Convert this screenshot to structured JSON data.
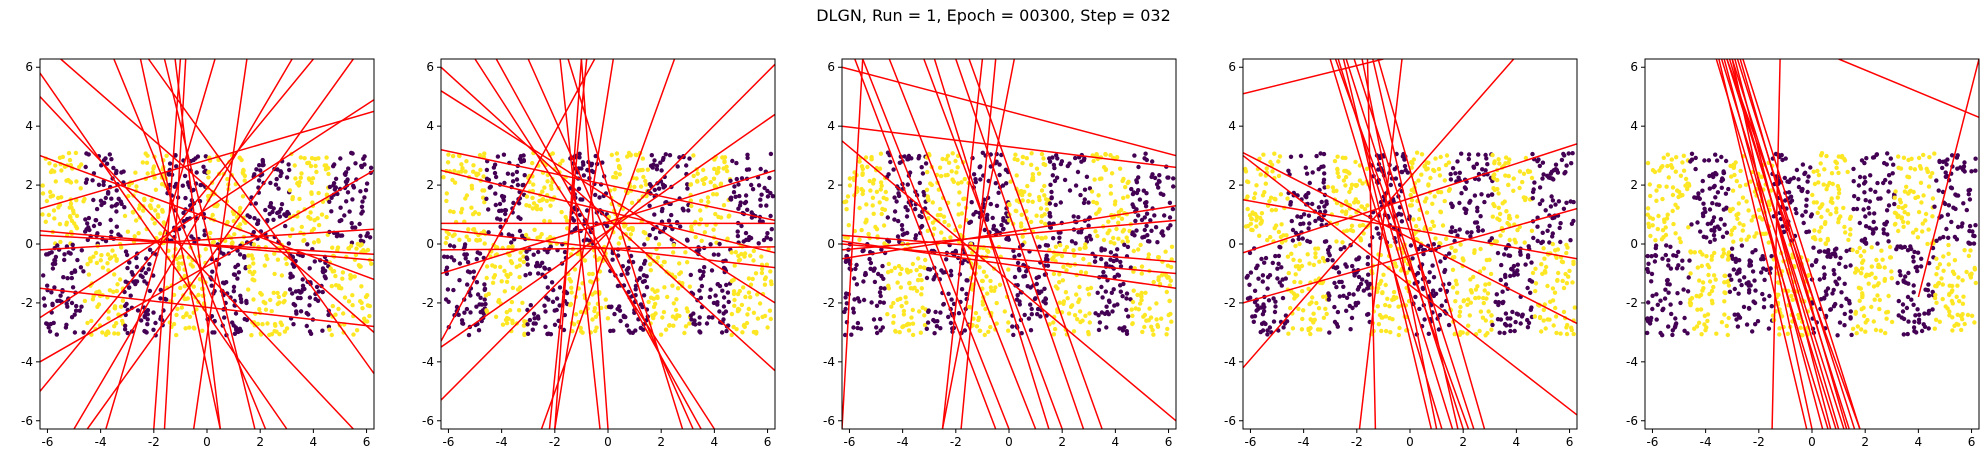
{
  "figure": {
    "title": "DLGN, Run = 1, Epoch = 00300, Step = 032"
  },
  "chart_data": [
    {
      "type": "scatter",
      "title": "",
      "xlabel": "",
      "ylabel": "",
      "xlim": [
        -6.28,
        6.28
      ],
      "ylim": [
        -6.28,
        6.28
      ],
      "xticks": [
        -6,
        -4,
        -2,
        0,
        2,
        4,
        6
      ],
      "yticks": [
        -6,
        -4,
        -2,
        0,
        2,
        4,
        6
      ],
      "grid": false,
      "points": {
        "x_range": [
          -6.2,
          6.2
        ],
        "y_range": [
          -3.1,
          3.1
        ],
        "column_edges": [
          -6.2,
          -4.6,
          -3.1,
          -1.5,
          0,
          1.5,
          3.1,
          4.6,
          6.2
        ],
        "row_split": 0,
        "colors": {
          "class0": "#440154",
          "class1": "#fde725"
        },
        "top_row_starts_with": "class1"
      },
      "hyperplanes": [
        [
          [
            -6.28,
            0.45
          ],
          [
            6.28,
            -0.55
          ]
        ],
        [
          [
            -6.28,
            0.3
          ],
          [
            6.28,
            -0.35
          ]
        ],
        [
          [
            -6.28,
            -0.2
          ],
          [
            6.28,
            0.5
          ]
        ],
        [
          [
            -6.28,
            5.8
          ],
          [
            3.0,
            -6.28
          ]
        ],
        [
          [
            -6.28,
            -5.0
          ],
          [
            4.0,
            6.28
          ]
        ],
        [
          [
            -3.5,
            6.28
          ],
          [
            2.2,
            -6.28
          ]
        ],
        [
          [
            -2.5,
            6.28
          ],
          [
            0.5,
            -6.28
          ]
        ],
        [
          [
            -1.0,
            6.28
          ],
          [
            -2.0,
            -6.28
          ]
        ],
        [
          [
            0.3,
            6.28
          ],
          [
            -3.8,
            -6.28
          ]
        ],
        [
          [
            -6.28,
            1.2
          ],
          [
            6.28,
            4.5
          ]
        ],
        [
          [
            -6.28,
            -4.0
          ],
          [
            6.28,
            2.5
          ]
        ],
        [
          [
            -6.28,
            -1.5
          ],
          [
            6.28,
            -2.8
          ]
        ],
        [
          [
            -4.5,
            -6.28
          ],
          [
            5.5,
            6.28
          ]
        ],
        [
          [
            -5.5,
            6.28
          ],
          [
            6.28,
            -3.0
          ]
        ],
        [
          [
            -2.2,
            6.28
          ],
          [
            6.28,
            -4.4
          ]
        ],
        [
          [
            1.5,
            6.28
          ],
          [
            -0.5,
            -6.28
          ]
        ],
        [
          [
            3.2,
            6.28
          ],
          [
            -5.0,
            -6.28
          ]
        ],
        [
          [
            -6.28,
            3.0
          ],
          [
            6.28,
            -1.2
          ]
        ],
        [
          [
            -1.6,
            6.28
          ],
          [
            1.8,
            -6.28
          ]
        ],
        [
          [
            0.5,
            -6.28
          ],
          [
            -1.2,
            6.28
          ]
        ],
        [
          [
            -6.28,
            -2.5
          ],
          [
            6.28,
            4.9
          ]
        ],
        [
          [
            -6.28,
            5.0
          ],
          [
            5.5,
            -6.28
          ]
        ],
        [
          [
            -0.8,
            6.28
          ],
          [
            -1.6,
            -6.28
          ]
        ]
      ]
    },
    {
      "type": "scatter",
      "title": "",
      "xlabel": "",
      "ylabel": "",
      "xlim": [
        -6.28,
        6.28
      ],
      "ylim": [
        -6.28,
        6.28
      ],
      "xticks": [
        -6,
        -4,
        -2,
        0,
        2,
        4,
        6
      ],
      "yticks": [
        -6,
        -4,
        -2,
        0,
        2,
        4,
        6
      ],
      "grid": false,
      "points": {
        "x_range": [
          -6.2,
          6.2
        ],
        "y_range": [
          -3.1,
          3.1
        ],
        "column_edges": [
          -6.2,
          -4.6,
          -3.1,
          -1.5,
          0,
          1.5,
          3.1,
          4.6,
          6.2
        ],
        "row_split": 0,
        "colors": {
          "class0": "#440154",
          "class1": "#fde725"
        },
        "top_row_starts_with": "class1"
      },
      "hyperplanes": [
        [
          [
            -6.28,
            0.7
          ],
          [
            6.28,
            0.7
          ]
        ],
        [
          [
            -6.28,
            -0.2
          ],
          [
            6.28,
            -0.1
          ]
        ],
        [
          [
            -6.28,
            0.5
          ],
          [
            6.28,
            -0.8
          ]
        ],
        [
          [
            -6.28,
            -5.3
          ],
          [
            6.28,
            6.1
          ]
        ],
        [
          [
            -6.28,
            6.0
          ],
          [
            6.28,
            -4.3
          ]
        ],
        [
          [
            -6.28,
            2.5
          ],
          [
            6.28,
            -0.3
          ]
        ],
        [
          [
            -6.28,
            -3.3
          ],
          [
            -0.5,
            6.28
          ]
        ],
        [
          [
            -2.2,
            -6.28
          ],
          [
            -0.8,
            6.28
          ]
        ],
        [
          [
            -2.0,
            -6.28
          ],
          [
            -1.0,
            6.28
          ]
        ],
        [
          [
            -0.3,
            -6.28
          ],
          [
            -1.8,
            6.28
          ]
        ],
        [
          [
            -4.2,
            6.28
          ],
          [
            3.5,
            -6.28
          ]
        ],
        [
          [
            -3.0,
            6.28
          ],
          [
            3.2,
            -6.28
          ]
        ],
        [
          [
            -1.5,
            6.28
          ],
          [
            2.8,
            -6.28
          ]
        ],
        [
          [
            -6.28,
            -1.0
          ],
          [
            6.28,
            2.5
          ]
        ],
        [
          [
            -6.28,
            3.2
          ],
          [
            6.28,
            0.8
          ]
        ],
        [
          [
            0.2,
            6.28
          ],
          [
            -2.0,
            -6.28
          ]
        ],
        [
          [
            -6.28,
            5.2
          ],
          [
            6.28,
            -2.0
          ]
        ],
        [
          [
            -2.5,
            -6.28
          ],
          [
            2.5,
            6.28
          ]
        ],
        [
          [
            -1.0,
            6.28
          ],
          [
            0.0,
            -6.28
          ]
        ],
        [
          [
            -5.0,
            6.28
          ],
          [
            4.0,
            -6.28
          ]
        ],
        [
          [
            -6.28,
            -3.5
          ],
          [
            6.28,
            4.4
          ]
        ]
      ]
    },
    {
      "type": "scatter",
      "title": "",
      "xlabel": "",
      "ylabel": "",
      "xlim": [
        -6.28,
        6.28
      ],
      "ylim": [
        -6.28,
        6.28
      ],
      "xticks": [
        -6,
        -4,
        -2,
        0,
        2,
        4,
        6
      ],
      "yticks": [
        -6,
        -4,
        -2,
        0,
        2,
        4,
        6
      ],
      "grid": false,
      "points": {
        "x_range": [
          -6.2,
          6.2
        ],
        "y_range": [
          -3.1,
          3.1
        ],
        "column_edges": [
          -6.2,
          -4.6,
          -3.1,
          -1.5,
          0,
          1.5,
          3.1,
          4.6,
          6.2
        ],
        "row_split": 0,
        "colors": {
          "class0": "#440154",
          "class1": "#fde725"
        },
        "top_row_starts_with": "class1"
      },
      "hyperplanes": [
        [
          [
            -6.28,
            4.0
          ],
          [
            6.28,
            2.6
          ]
        ],
        [
          [
            -6.28,
            3.5
          ],
          [
            6.28,
            -6.0
          ]
        ],
        [
          [
            -6.28,
            0.3
          ],
          [
            6.28,
            -0.6
          ]
        ],
        [
          [
            -6.28,
            -0.2
          ],
          [
            6.28,
            0.8
          ]
        ],
        [
          [
            -6.28,
            0.0
          ],
          [
            6.28,
            -1.0
          ]
        ],
        [
          [
            -6.28,
            0.1
          ],
          [
            6.28,
            -1.5
          ]
        ],
        [
          [
            -6.28,
            -0.5
          ],
          [
            6.28,
            1.3
          ]
        ],
        [
          [
            -5.5,
            6.28
          ],
          [
            0.0,
            -6.28
          ]
        ],
        [
          [
            -4.5,
            6.28
          ],
          [
            1.0,
            -6.28
          ]
        ],
        [
          [
            -3.2,
            6.28
          ],
          [
            2.0,
            -6.28
          ]
        ],
        [
          [
            -2.0,
            6.28
          ],
          [
            2.8,
            -6.28
          ]
        ],
        [
          [
            -1.5,
            6.28
          ],
          [
            3.5,
            -6.28
          ]
        ],
        [
          [
            -1.0,
            6.28
          ],
          [
            -2.5,
            -6.28
          ]
        ],
        [
          [
            -0.5,
            6.28
          ],
          [
            -1.8,
            -6.28
          ]
        ],
        [
          [
            -2.5,
            -6.28
          ],
          [
            0.2,
            6.28
          ]
        ],
        [
          [
            -6.28,
            6.0
          ],
          [
            6.28,
            3.0
          ]
        ],
        [
          [
            -5.8,
            6.28
          ],
          [
            -0.5,
            -6.28
          ]
        ],
        [
          [
            -2.8,
            6.28
          ],
          [
            1.5,
            -6.28
          ]
        ],
        [
          [
            -6.28,
            -6.28
          ],
          [
            -5.5,
            6.28
          ]
        ]
      ]
    },
    {
      "type": "scatter",
      "title": "",
      "xlabel": "",
      "ylabel": "",
      "xlim": [
        -6.28,
        6.28
      ],
      "ylim": [
        -6.28,
        6.28
      ],
      "xticks": [
        -6,
        -4,
        -2,
        0,
        2,
        4,
        6
      ],
      "yticks": [
        -6,
        -4,
        -2,
        0,
        2,
        4,
        6
      ],
      "grid": false,
      "points": {
        "x_range": [
          -6.2,
          6.2
        ],
        "y_range": [
          -3.1,
          3.1
        ],
        "column_edges": [
          -6.2,
          -4.6,
          -3.1,
          -1.5,
          0,
          1.5,
          3.1,
          4.6,
          6.2
        ],
        "row_split": 0,
        "colors": {
          "class0": "#440154",
          "class1": "#fde725"
        },
        "top_row_starts_with": "class1"
      },
      "hyperplanes": [
        [
          [
            -6.28,
            5.1
          ],
          [
            -1.0,
            6.28
          ]
        ],
        [
          [
            -6.28,
            -4.2
          ],
          [
            3.9,
            6.28
          ]
        ],
        [
          [
            -6.28,
            3.1
          ],
          [
            6.28,
            -2.7
          ]
        ],
        [
          [
            -6.28,
            -0.3
          ],
          [
            6.28,
            3.4
          ]
        ],
        [
          [
            -6.28,
            3.0
          ],
          [
            6.28,
            -5.8
          ]
        ],
        [
          [
            -6.28,
            -2.0
          ],
          [
            6.28,
            1.2
          ]
        ],
        [
          [
            -3.0,
            6.28
          ],
          [
            1.2,
            -6.28
          ]
        ],
        [
          [
            -2.7,
            6.28
          ],
          [
            1.6,
            -6.28
          ]
        ],
        [
          [
            -2.4,
            6.28
          ],
          [
            2.0,
            -6.28
          ]
        ],
        [
          [
            -2.1,
            6.28
          ],
          [
            2.4,
            -6.28
          ]
        ],
        [
          [
            -1.8,
            6.28
          ],
          [
            1.0,
            -6.28
          ]
        ],
        [
          [
            -1.4,
            6.28
          ],
          [
            1.8,
            -6.28
          ]
        ],
        [
          [
            -2.5,
            6.28
          ],
          [
            0.8,
            -6.28
          ]
        ],
        [
          [
            -1.2,
            6.28
          ],
          [
            2.8,
            -6.28
          ]
        ],
        [
          [
            -1.3,
            -6.28
          ],
          [
            -1.6,
            6.28
          ]
        ],
        [
          [
            -1.9,
            -6.28
          ],
          [
            -0.3,
            6.28
          ]
        ],
        [
          [
            -6.28,
            1.5
          ],
          [
            6.28,
            -0.5
          ]
        ],
        [
          [
            -2.8,
            6.28
          ],
          [
            2.2,
            -6.28
          ]
        ]
      ]
    },
    {
      "type": "scatter",
      "title": "",
      "xlabel": "",
      "ylabel": "",
      "xlim": [
        -6.28,
        6.28
      ],
      "ylim": [
        -6.28,
        6.28
      ],
      "xticks": [
        -6,
        -4,
        -2,
        0,
        2,
        4,
        6
      ],
      "yticks": [
        -6,
        -4,
        -2,
        0,
        2,
        4,
        6
      ],
      "grid": false,
      "points": {
        "x_range": [
          -6.2,
          6.2
        ],
        "y_range": [
          -3.1,
          3.1
        ],
        "column_edges": [
          -6.2,
          -4.6,
          -3.1,
          -1.5,
          0,
          1.5,
          3.1,
          4.6,
          6.2
        ],
        "row_split": 0,
        "colors": {
          "class0": "#440154",
          "class1": "#fde725"
        },
        "top_row_starts_with": "class1"
      },
      "hyperplanes": [
        [
          [
            -3.6,
            6.28
          ],
          [
            0.6,
            -6.28
          ]
        ],
        [
          [
            -3.4,
            6.28
          ],
          [
            0.9,
            -6.28
          ]
        ],
        [
          [
            -3.2,
            6.28
          ],
          [
            1.2,
            -6.28
          ]
        ],
        [
          [
            -3.0,
            6.28
          ],
          [
            1.4,
            -6.28
          ]
        ],
        [
          [
            -2.8,
            6.28
          ],
          [
            1.6,
            -6.28
          ]
        ],
        [
          [
            -3.3,
            6.28
          ],
          [
            0.4,
            -6.28
          ]
        ],
        [
          [
            -3.1,
            6.28
          ],
          [
            1.0,
            -6.28
          ]
        ],
        [
          [
            -2.6,
            6.28
          ],
          [
            1.8,
            -6.28
          ]
        ],
        [
          [
            -3.5,
            6.28
          ],
          [
            -0.2,
            -6.28
          ]
        ],
        [
          [
            -2.9,
            6.28
          ],
          [
            0.7,
            -6.28
          ]
        ],
        [
          [
            -1.5,
            -6.28
          ],
          [
            -1.2,
            6.28
          ]
        ],
        [
          [
            1.0,
            -6.28
          ],
          [
            1.0,
            -6.28
          ]
        ],
        [
          [
            4.0,
            -1.8
          ],
          [
            6.28,
            6.28
          ]
        ],
        [
          [
            1.0,
            6.28
          ],
          [
            6.28,
            4.3
          ]
        ],
        [
          [
            -3.2,
            6.28
          ],
          [
            1.8,
            -6.28
          ]
        ],
        [
          [
            -3.0,
            6.28
          ],
          [
            0.0,
            -6.28
          ]
        ],
        [
          [
            -2.7,
            6.28
          ],
          [
            1.3,
            -6.28
          ]
        ]
      ]
    }
  ]
}
